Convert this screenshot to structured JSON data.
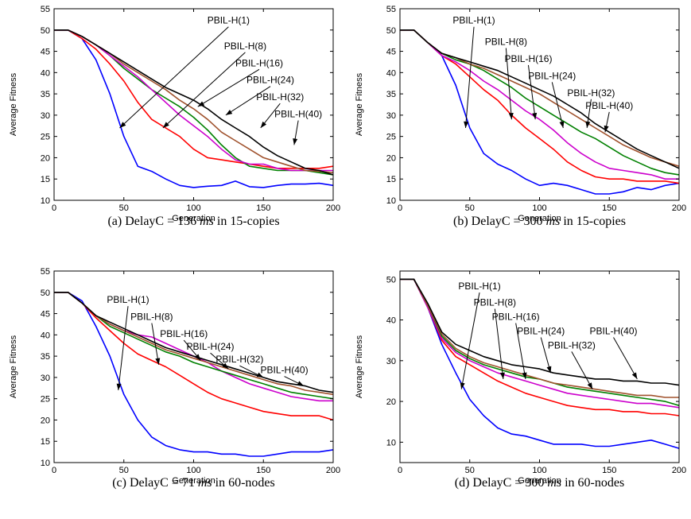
{
  "chart_data": [
    {
      "type": "line",
      "caption_pre": "(a) DelayC = 136 ",
      "caption_unit": "ms",
      "caption_post": " in 15-copies",
      "xlabel": "Generation",
      "ylabel": "Average Fitness",
      "xlim": [
        0,
        200
      ],
      "ylim": [
        10,
        55
      ],
      "xticks": [
        0,
        50,
        100,
        150,
        200
      ],
      "yticks": [
        10,
        15,
        20,
        25,
        30,
        35,
        40,
        45,
        50,
        55
      ],
      "x": [
        0,
        10,
        20,
        30,
        40,
        50,
        60,
        70,
        80,
        90,
        100,
        110,
        120,
        130,
        140,
        150,
        160,
        170,
        180,
        190,
        200
      ],
      "series": [
        {
          "name": "PBIL-H(1)",
          "color": "#0000ff",
          "values": [
            50,
            50,
            48,
            43,
            35,
            25,
            18,
            16.8,
            15,
            13.5,
            13,
            13.3,
            13.5,
            14.5,
            13.2,
            13,
            13.5,
            13.8,
            13.8,
            14,
            13.5
          ]
        },
        {
          "name": "PBIL-H(8)",
          "color": "#ff0000",
          "values": [
            50,
            50,
            48,
            45.5,
            42,
            38,
            33,
            29,
            27,
            25,
            22,
            20,
            19.5,
            19,
            18.5,
            18,
            17.5,
            17.5,
            17.5,
            17.5,
            18
          ]
        },
        {
          "name": "PBIL-H(16)",
          "color": "#008000",
          "values": [
            50,
            50,
            48.5,
            46.5,
            44,
            41,
            38.5,
            36,
            34,
            32,
            29.5,
            26.5,
            23,
            20,
            18,
            17.5,
            17,
            17,
            17,
            16.5,
            16
          ]
        },
        {
          "name": "PBIL-H(24)",
          "color": "#cc00cc",
          "values": [
            50,
            50,
            48.5,
            46.5,
            44,
            41.5,
            39,
            36,
            33,
            30,
            27.5,
            25,
            22,
            19.5,
            18.5,
            18.5,
            17.5,
            17,
            17,
            17,
            17
          ]
        },
        {
          "name": "PBIL-H(32)",
          "color": "#a0522d",
          "values": [
            50,
            50,
            48.5,
            46.5,
            44.5,
            42,
            40,
            38,
            36,
            33.5,
            31.5,
            29,
            26,
            24,
            22,
            20,
            19,
            18,
            17,
            16.8,
            16.5
          ]
        },
        {
          "name": "PBIL-H(40)",
          "color": "#000000",
          "values": [
            50,
            50,
            48.5,
            46.5,
            44.5,
            42.5,
            40.5,
            38.5,
            36.5,
            35,
            33.5,
            31.5,
            29,
            27,
            25,
            22.5,
            20.5,
            19,
            17.5,
            17,
            16
          ]
        }
      ],
      "annotations": [
        {
          "text": "PBIL-H(1)",
          "target": [
            47,
            27
          ],
          "label_at": [
            125,
            51.5
          ]
        },
        {
          "text": "PBIL-H(8)",
          "target": [
            78,
            27
          ],
          "label_at": [
            137,
            45.5
          ]
        },
        {
          "text": "PBIL-H(16)",
          "target": [
            103,
            32
          ],
          "label_at": [
            147,
            41.5
          ]
        },
        {
          "text": "PBIL-H(24)",
          "target": [
            123,
            30
          ],
          "label_at": [
            155,
            37.5
          ]
        },
        {
          "text": "PBIL-H(32)",
          "target": [
            148,
            27
          ],
          "label_at": [
            162,
            33.5
          ]
        },
        {
          "text": "PBIL-H(40)",
          "target": [
            172,
            23
          ],
          "label_at": [
            175,
            29.5
          ]
        }
      ]
    },
    {
      "type": "line",
      "caption_pre": "(b) DelayC = 300 ",
      "caption_unit": "ms",
      "caption_post": " in 15-copies",
      "xlabel": "Generation",
      "ylabel": "Average Fitness",
      "xlim": [
        0,
        200
      ],
      "ylim": [
        10,
        55
      ],
      "xticks": [
        0,
        50,
        100,
        150,
        200
      ],
      "yticks": [
        10,
        15,
        20,
        25,
        30,
        35,
        40,
        45,
        50,
        55
      ],
      "x": [
        0,
        10,
        20,
        30,
        40,
        50,
        60,
        70,
        80,
        90,
        100,
        110,
        120,
        130,
        140,
        150,
        160,
        170,
        180,
        190,
        200
      ],
      "series": [
        {
          "name": "PBIL-H(1)",
          "color": "#0000ff",
          "values": [
            50,
            50,
            47,
            44,
            37,
            27,
            21,
            18.5,
            17,
            15,
            13.5,
            14,
            13.5,
            12.5,
            11.5,
            11.5,
            12,
            13,
            12.5,
            13.5,
            14
          ]
        },
        {
          "name": "PBIL-H(8)",
          "color": "#ff0000",
          "values": [
            50,
            50,
            47,
            44,
            42,
            39,
            36,
            33.5,
            30,
            27,
            24.5,
            22,
            19,
            17,
            15.5,
            15,
            15,
            14.5,
            14.5,
            14.5,
            14
          ]
        },
        {
          "name": "PBIL-H(16)",
          "color": "#cc00cc",
          "values": [
            50,
            50,
            47,
            44,
            42.5,
            40.5,
            38,
            36,
            33.5,
            31,
            29,
            26.5,
            23.5,
            21,
            19,
            17.5,
            17,
            16.5,
            16,
            15,
            15
          ]
        },
        {
          "name": "PBIL-H(24)",
          "color": "#008000",
          "values": [
            50,
            50,
            47,
            44.5,
            43,
            42,
            40.5,
            38.5,
            36.5,
            34,
            32,
            30,
            28,
            26,
            24.5,
            22.5,
            20.5,
            19,
            17.5,
            16.5,
            16
          ]
        },
        {
          "name": "PBIL-H(32)",
          "color": "#a0522d",
          "values": [
            50,
            50,
            47,
            44.5,
            43.5,
            42,
            41,
            39.5,
            38,
            36.5,
            35,
            33,
            31,
            29,
            27,
            25,
            23,
            21.5,
            20,
            19,
            18
          ]
        },
        {
          "name": "PBIL-H(40)",
          "color": "#000000",
          "values": [
            50,
            50,
            47,
            44.5,
            43.5,
            42.5,
            41.5,
            40.5,
            39,
            37.5,
            36,
            34.5,
            32.5,
            30.5,
            28,
            26,
            24,
            22,
            20.5,
            19,
            17.5
          ]
        }
      ],
      "annotations": [
        {
          "text": "PBIL-H(1)",
          "target": [
            47,
            27
          ],
          "label_at": [
            53,
            51.5
          ]
        },
        {
          "text": "PBIL-H(8)",
          "target": [
            80,
            29
          ],
          "label_at": [
            76,
            46.5
          ]
        },
        {
          "text": "PBIL-H(16)",
          "target": [
            97,
            29
          ],
          "label_at": [
            92,
            42.5
          ]
        },
        {
          "text": "PBIL-H(24)",
          "target": [
            117,
            27
          ],
          "label_at": [
            109,
            38.5
          ]
        },
        {
          "text": "PBIL-H(32)",
          "target": [
            134,
            27
          ],
          "label_at": [
            137,
            34.5
          ]
        },
        {
          "text": "PBIL-H(40)",
          "target": [
            147,
            26
          ],
          "label_at": [
            150,
            31.5
          ]
        }
      ]
    },
    {
      "type": "line",
      "caption_pre": "(c) DelayC = 71 ",
      "caption_unit": "ms",
      "caption_post": " in 60-nodes",
      "xlabel": "Generation",
      "ylabel": "Average Fitness",
      "xlim": [
        0,
        200
      ],
      "ylim": [
        10,
        55
      ],
      "xticks": [
        0,
        50,
        100,
        150,
        200
      ],
      "yticks": [
        10,
        15,
        20,
        25,
        30,
        35,
        40,
        45,
        50,
        55
      ],
      "x": [
        0,
        10,
        20,
        30,
        40,
        50,
        60,
        70,
        80,
        90,
        100,
        110,
        120,
        130,
        140,
        150,
        160,
        170,
        180,
        190,
        200
      ],
      "series": [
        {
          "name": "PBIL-H(1)",
          "color": "#0000ff",
          "values": [
            50,
            50,
            48,
            42,
            35,
            26,
            20,
            16,
            14,
            13,
            12.5,
            12.5,
            12,
            12,
            11.5,
            11.5,
            12,
            12.5,
            12.5,
            12.5,
            13
          ]
        },
        {
          "name": "PBIL-H(8)",
          "color": "#ff0000",
          "values": [
            50,
            50,
            47.5,
            44,
            41,
            38,
            35.5,
            34,
            32.5,
            30.5,
            28.5,
            26.5,
            25,
            24,
            23,
            22,
            21.5,
            21,
            21,
            21,
            20
          ]
        },
        {
          "name": "PBIL-H(16)",
          "color": "#cc00cc",
          "values": [
            50,
            50,
            47.5,
            44.5,
            42.5,
            41,
            40,
            39.5,
            38,
            36.5,
            35,
            33.5,
            31.5,
            30,
            28.5,
            27.5,
            26.5,
            25.5,
            25,
            24.5,
            24.5
          ]
        },
        {
          "name": "PBIL-H(24)",
          "color": "#008000",
          "values": [
            50,
            50,
            47.5,
            44.5,
            42,
            40.5,
            39,
            37.5,
            36,
            35,
            33.5,
            32.5,
            31.5,
            30.5,
            29.5,
            28.5,
            27.5,
            26.5,
            26,
            25.5,
            25
          ]
        },
        {
          "name": "PBIL-H(32)",
          "color": "#a0522d",
          "values": [
            50,
            50,
            47.5,
            44.5,
            42.5,
            41,
            39.5,
            38,
            36.5,
            35.5,
            34.5,
            33.5,
            32.5,
            31.5,
            30.5,
            29.5,
            28.5,
            28,
            27,
            26.5,
            26
          ]
        },
        {
          "name": "PBIL-H(40)",
          "color": "#000000",
          "values": [
            50,
            50,
            47.5,
            44.5,
            43,
            41.5,
            40,
            38.5,
            37,
            36,
            35,
            34,
            33,
            32,
            31,
            30,
            29,
            28.5,
            28,
            27,
            26.5
          ]
        }
      ],
      "annotations": [
        {
          "text": "PBIL-H(1)",
          "target": [
            46,
            27
          ],
          "label_at": [
            53,
            47.5
          ]
        },
        {
          "text": "PBIL-H(8)",
          "target": [
            75,
            33
          ],
          "label_at": [
            70,
            43.5
          ]
        },
        {
          "text": "PBIL-H(16)",
          "target": [
            105,
            34
          ],
          "label_at": [
            93,
            39.5
          ]
        },
        {
          "text": "PBIL-H(24)",
          "target": [
            125,
            32
          ],
          "label_at": [
            112,
            36.5
          ]
        },
        {
          "text": "PBIL-H(32)",
          "target": [
            150,
            30
          ],
          "label_at": [
            133,
            33.5
          ]
        },
        {
          "text": "PBIL-H(40)",
          "target": [
            179,
            28
          ],
          "label_at": [
            165,
            31
          ]
        }
      ]
    },
    {
      "type": "line",
      "caption_pre": "(d) DelayC = 300 ",
      "caption_unit": "ms",
      "caption_post": " in 60-nodes",
      "xlabel": "Generation",
      "ylabel": "Average Fitness",
      "xlim": [
        0,
        200
      ],
      "ylim": [
        5,
        52
      ],
      "xticks": [
        0,
        50,
        100,
        150,
        200
      ],
      "yticks": [
        10,
        20,
        30,
        40,
        50
      ],
      "x": [
        0,
        10,
        20,
        30,
        40,
        50,
        60,
        70,
        80,
        90,
        100,
        110,
        120,
        130,
        140,
        150,
        160,
        170,
        180,
        190,
        200
      ],
      "series": [
        {
          "name": "PBIL-H(1)",
          "color": "#0000ff",
          "values": [
            50,
            50,
            43,
            34,
            27,
            20.5,
            16.5,
            13.5,
            12,
            11.5,
            10.5,
            9.5,
            9.5,
            9.5,
            9,
            9,
            9.5,
            10,
            10.5,
            9.5,
            8.5
          ]
        },
        {
          "name": "PBIL-H(8)",
          "color": "#ff0000",
          "values": [
            50,
            50,
            43,
            35,
            31,
            29,
            27,
            25,
            23.5,
            22,
            21,
            20,
            19,
            18.5,
            18,
            18,
            17.5,
            17.5,
            17,
            17,
            16.5
          ]
        },
        {
          "name": "PBIL-H(16)",
          "color": "#cc00cc",
          "values": [
            50,
            50,
            43,
            35.5,
            32,
            30,
            28.5,
            27,
            26,
            25,
            24,
            23,
            22,
            21.5,
            21,
            20.5,
            20,
            19.5,
            19.5,
            19,
            18.5
          ]
        },
        {
          "name": "PBIL-H(24)",
          "color": "#008000",
          "values": [
            50,
            50,
            43.5,
            36,
            32.5,
            30.5,
            29,
            28,
            27,
            26,
            25.5,
            24.5,
            23.5,
            23,
            22.5,
            22,
            21.5,
            21,
            20.5,
            20,
            19
          ]
        },
        {
          "name": "PBIL-H(32)",
          "color": "#a0522d",
          "values": [
            50,
            50,
            43.5,
            36.5,
            33,
            31,
            29.5,
            28.5,
            27.5,
            26.5,
            25.5,
            24.5,
            24,
            23.5,
            23,
            22.5,
            22,
            21.5,
            21.5,
            21,
            21
          ]
        },
        {
          "name": "PBIL-H(40)",
          "color": "#000000",
          "values": [
            50,
            50,
            44,
            37,
            34,
            32.5,
            31,
            30,
            29,
            28.5,
            28,
            27,
            26.5,
            26,
            25.5,
            25.5,
            25,
            25,
            24.5,
            24.5,
            24
          ]
        }
      ],
      "annotations": [
        {
          "text": "PBIL-H(1)",
          "target": [
            44,
            23
          ],
          "label_at": [
            57,
            47.5
          ]
        },
        {
          "text": "PBIL-H(8)",
          "target": [
            74,
            25.5
          ],
          "label_at": [
            68,
            43.5
          ]
        },
        {
          "text": "PBIL-H(16)",
          "target": [
            90,
            25.5
          ],
          "label_at": [
            83,
            40
          ]
        },
        {
          "text": "PBIL-H(24)",
          "target": [
            108,
            27
          ],
          "label_at": [
            101,
            36.5
          ]
        },
        {
          "text": "PBIL-H(32)",
          "target": [
            138,
            23
          ],
          "label_at": [
            123,
            33
          ]
        },
        {
          "text": "PBIL-H(40)",
          "target": [
            170,
            25.5
          ],
          "label_at": [
            153,
            36.5
          ]
        }
      ]
    }
  ]
}
